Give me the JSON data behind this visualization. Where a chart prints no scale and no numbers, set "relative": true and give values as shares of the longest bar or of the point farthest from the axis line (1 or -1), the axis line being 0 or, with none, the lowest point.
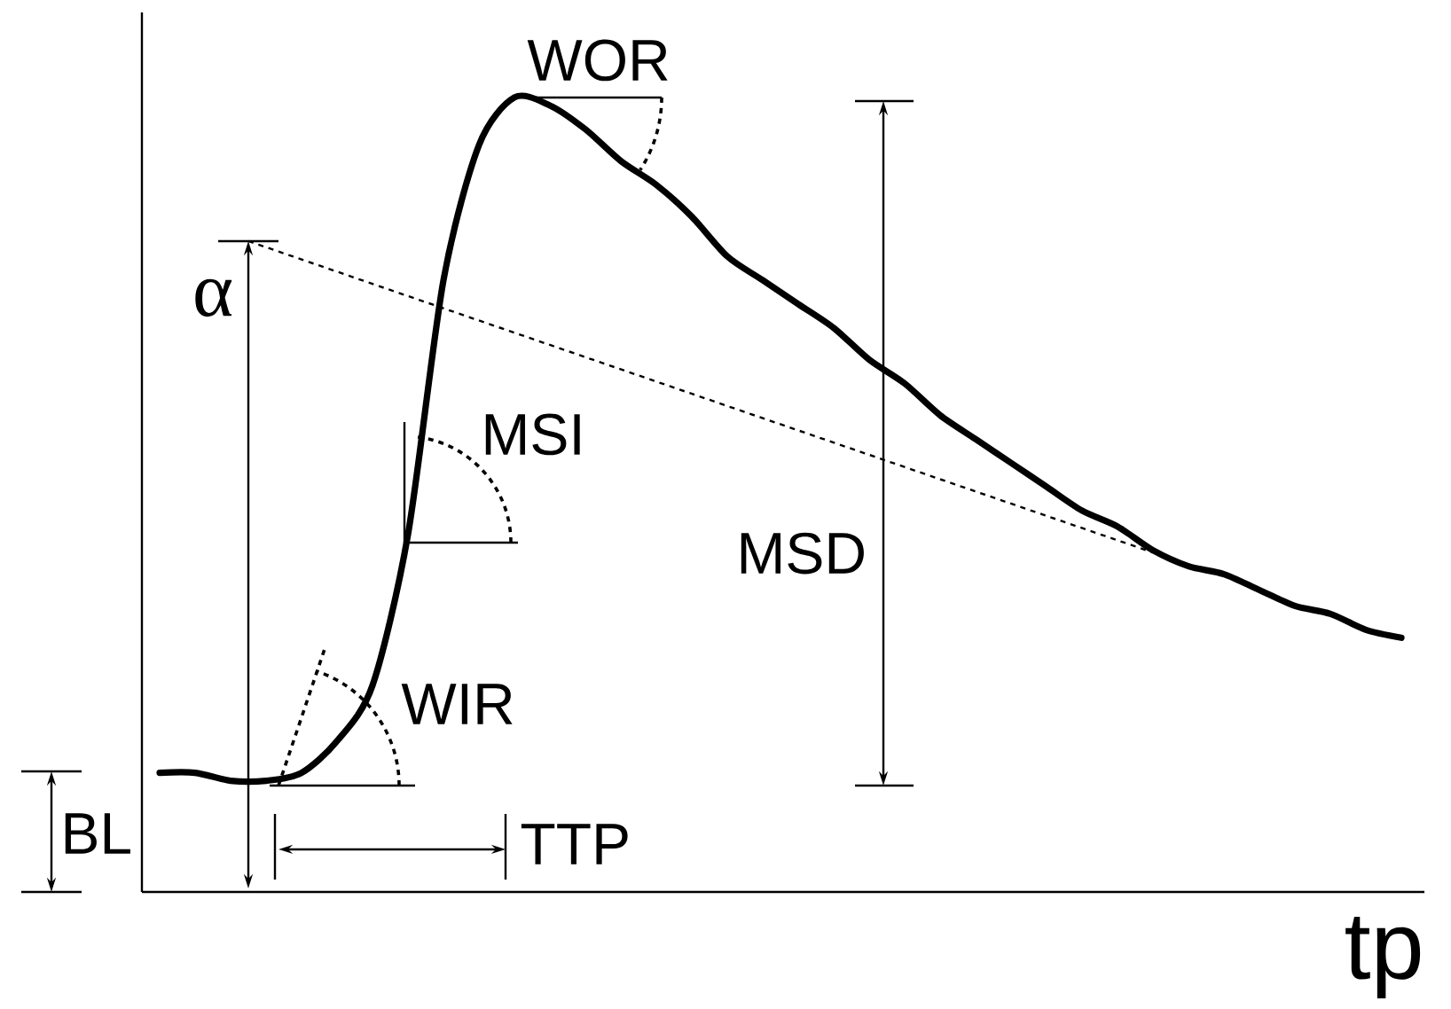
{
  "chart_data": {
    "type": "line",
    "relative": true,
    "color": "#000000",
    "xlabel": "tp",
    "categories": [
      null,
      null,
      null,
      null,
      null,
      null,
      null,
      null,
      null,
      null,
      null,
      null,
      null,
      null,
      null,
      null,
      null,
      null,
      null,
      null,
      null,
      null,
      null,
      null,
      null,
      null,
      null,
      null,
      null,
      null,
      null,
      null,
      null,
      null,
      null,
      null
    ],
    "values": [
      0.15,
      0.15,
      0.14,
      0.14,
      0.15,
      0.19,
      0.26,
      0.45,
      0.77,
      0.94,
      1.0,
      0.99,
      0.96,
      0.92,
      0.89,
      0.85,
      0.8,
      0.77,
      0.74,
      0.71,
      0.67,
      0.64,
      0.6,
      0.57,
      0.54,
      0.51,
      0.48,
      0.46,
      0.43,
      0.41,
      0.4,
      0.38,
      0.36,
      0.35,
      0.33,
      0.32
    ],
    "annotations": [
      "WOR",
      "MSI",
      "MSD",
      "WIR",
      "TTP",
      "BL",
      "α"
    ]
  }
}
